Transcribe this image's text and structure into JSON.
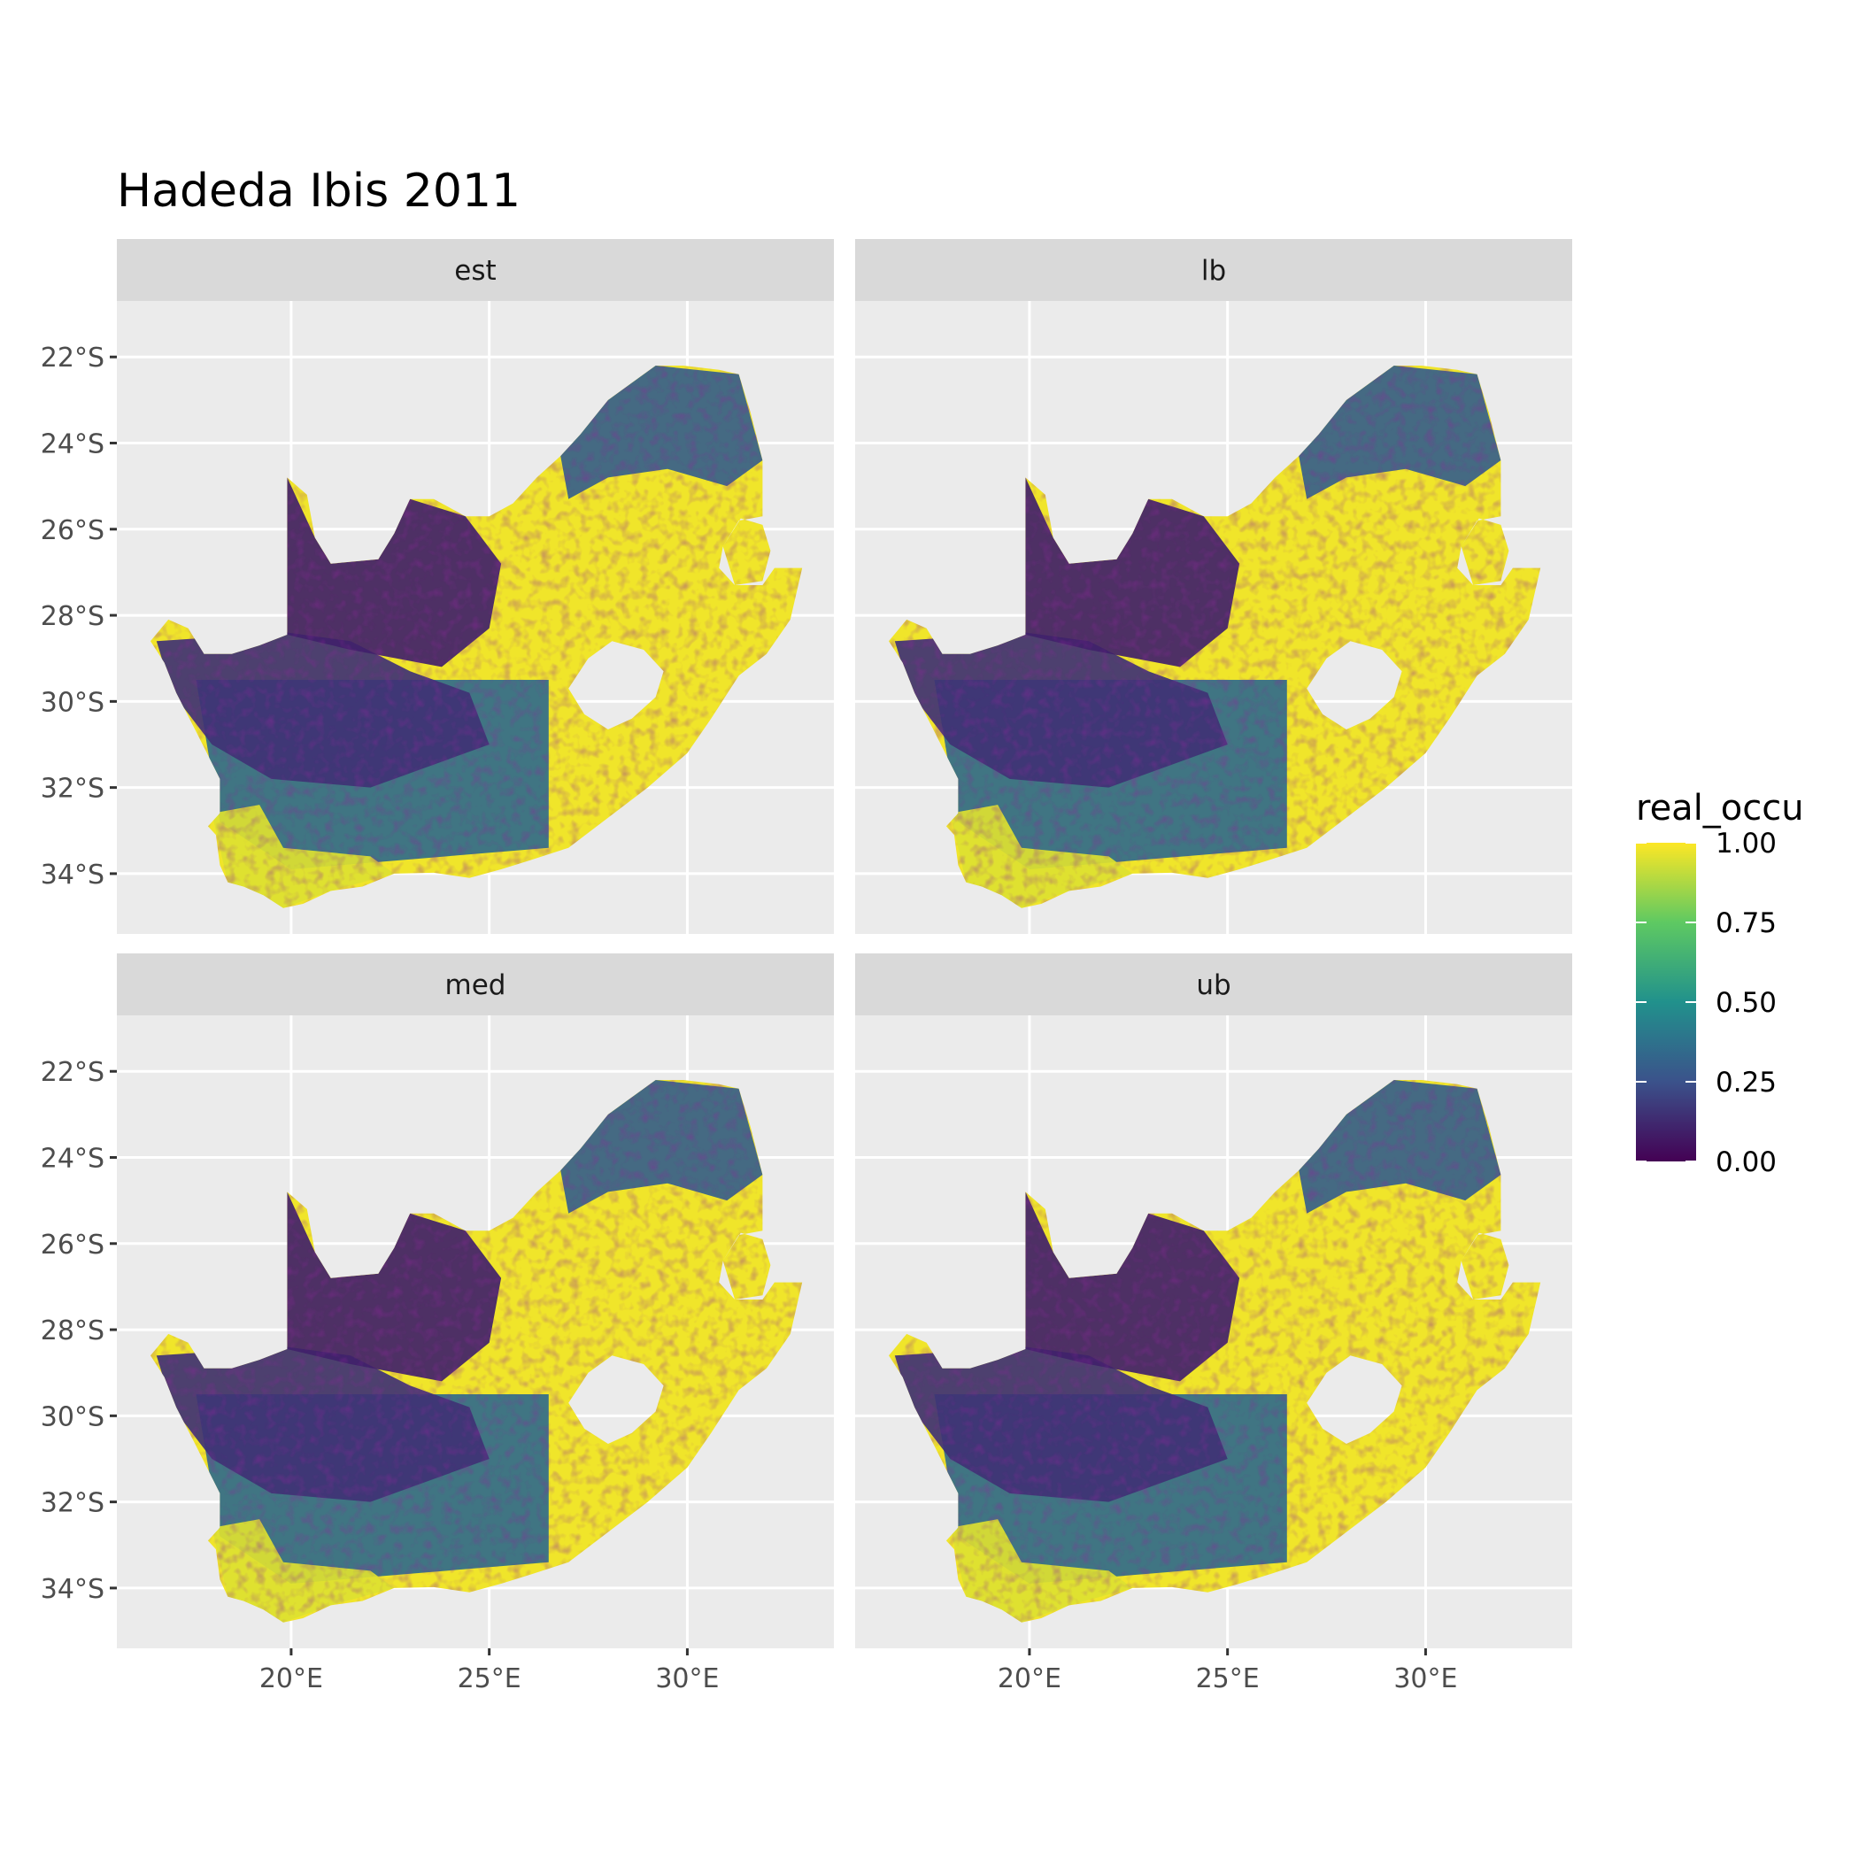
{
  "chart_data": {
    "type": "heatmap",
    "title": "Hadeda Ibis 2011",
    "facets": [
      "est",
      "lb",
      "med",
      "ub"
    ],
    "x_ticks": [
      20,
      25,
      30
    ],
    "x_tick_labels": [
      "20°E",
      "25°E",
      "30°E"
    ],
    "y_ticks": [
      -22,
      -24,
      -26,
      -28,
      -30,
      -32,
      -34
    ],
    "y_tick_labels": [
      "22°S",
      "24°S",
      "26°S",
      "28°S",
      "30°S",
      "32°S",
      "34°S"
    ],
    "xlim": [
      15.6,
      33.7
    ],
    "ylim": [
      -35.4,
      -20.7
    ],
    "legend": {
      "title": "real_occu",
      "labels": [
        "1.00",
        "0.75",
        "0.50",
        "0.25",
        "0.00"
      ],
      "values": [
        1.0,
        0.75,
        0.5,
        0.25,
        0.0
      ],
      "colors": [
        "#440154",
        "#3b528b",
        "#21918c",
        "#5ec962",
        "#fde725"
      ],
      "placement": "right"
    },
    "occupancy_regions": {
      "north_west": 0.1,
      "northern_cape": 0.15,
      "karoo": 0.35,
      "southwest_cape": 0.95,
      "east": 0.98,
      "far_north_east": 0.3
    }
  }
}
